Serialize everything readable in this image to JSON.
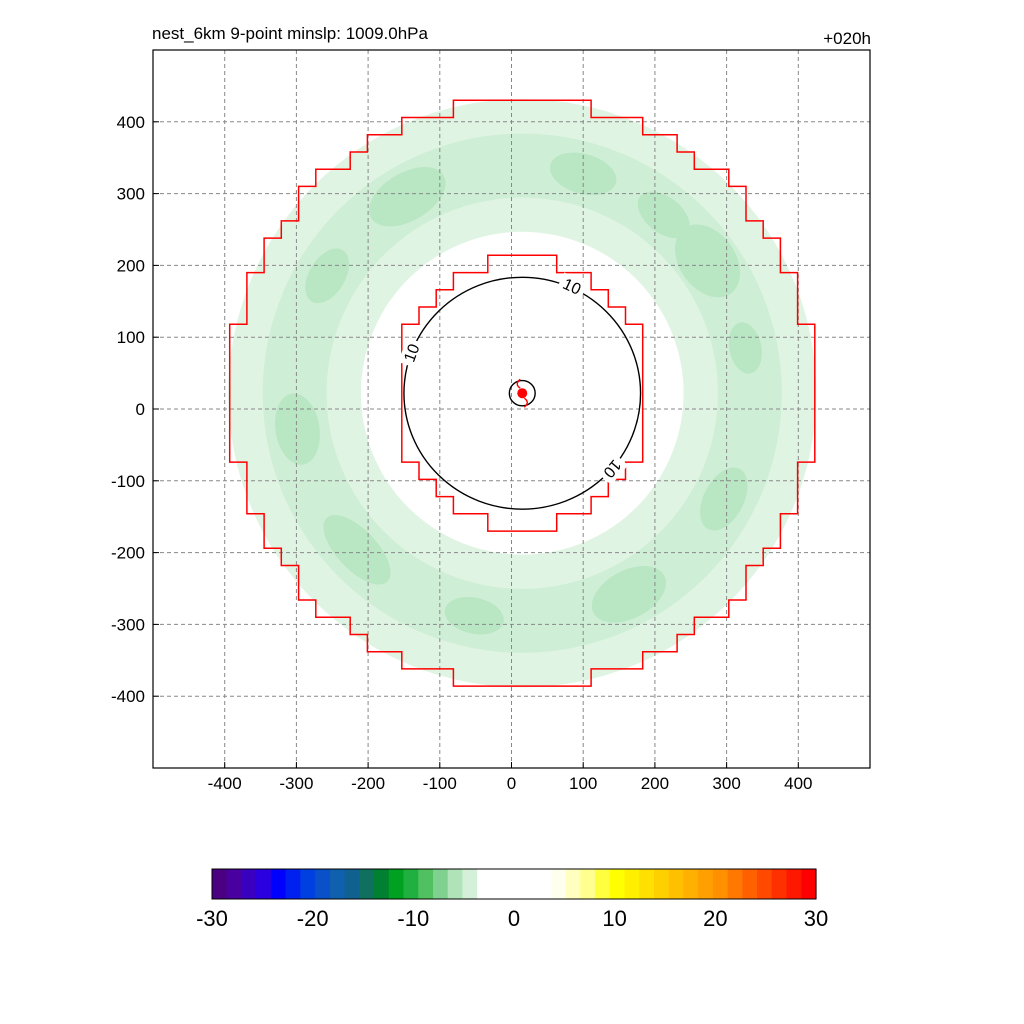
{
  "title_left": "nest_6km  9-point minslp: 1009.0hPa",
  "title_right": "+020h",
  "chart_data": {
    "type": "contour",
    "xlim": [
      -500,
      500
    ],
    "ylim": [
      -500,
      500
    ],
    "xticks": [
      -400,
      -300,
      -200,
      -100,
      0,
      100,
      200,
      300,
      400
    ],
    "yticks": [
      -400,
      -300,
      -200,
      -100,
      0,
      100,
      200,
      300,
      400
    ],
    "grid": true,
    "contour_label": "10",
    "contour_level": 10,
    "contour_rings": [
      {
        "radius": 165,
        "center": [
          15,
          22
        ]
      },
      {
        "radius": 18,
        "center": [
          15,
          22
        ]
      }
    ],
    "storm_center": [
      15,
      22
    ],
    "red_outlines": [
      {
        "half_width": 185,
        "center": [
          15,
          22
        ],
        "step": 24
      },
      {
        "half_width": 408,
        "center": [
          15,
          22
        ],
        "step": 24
      }
    ],
    "green_annulus": {
      "inner_radius": 225,
      "outer_radius": 410,
      "center": [
        15,
        22
      ]
    },
    "colorbar": {
      "min": -30,
      "max": 30,
      "ticks": [
        -30,
        -20,
        -10,
        0,
        10,
        20,
        30
      ],
      "colors": [
        "#4b0082",
        "#4a00a0",
        "#3a00c0",
        "#2a00e0",
        "#0000ff",
        "#0020f0",
        "#0040e0",
        "#0a50c8",
        "#1060b0",
        "#106090",
        "#107060",
        "#008030",
        "#00a020",
        "#20b040",
        "#50c060",
        "#80d090",
        "#b0e4b8",
        "#d4f0d8",
        "#ffffff",
        "#ffffff",
        "#ffffff",
        "#ffffff",
        "#ffffff",
        "#fffff0",
        "#ffffc0",
        "#ffff90",
        "#ffff40",
        "#ffff00",
        "#fff000",
        "#ffe000",
        "#ffd000",
        "#ffc000",
        "#ffb000",
        "#ffa000",
        "#ff9000",
        "#ff7800",
        "#ff6000",
        "#ff4800",
        "#ff3000",
        "#ff1800",
        "#ff0000"
      ]
    }
  }
}
